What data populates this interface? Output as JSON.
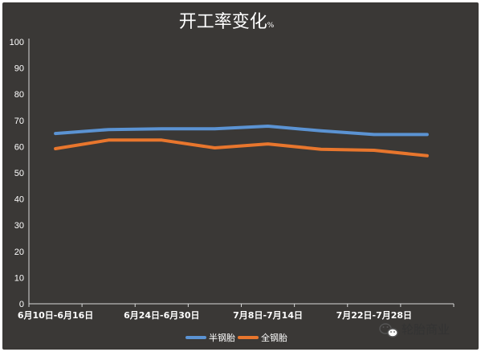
{
  "chart_data": {
    "type": "line",
    "title": "开工率变化",
    "title_unit": "%",
    "categories": [
      "6月10日-6月16日",
      "",
      "6月24日-6月30日",
      "",
      "7月8日-7月14日",
      "",
      "7月22日-7月28日",
      ""
    ],
    "series": [
      {
        "name": "半钢胎",
        "color": "#5b93d3",
        "values": [
          65,
          66.5,
          66.8,
          66.8,
          67.8,
          66,
          64.6,
          64.6
        ]
      },
      {
        "name": "全钢胎",
        "color": "#e8762d",
        "values": [
          59.2,
          62.5,
          62.5,
          59.5,
          61,
          59,
          58.6,
          56.5
        ]
      }
    ],
    "ylim": [
      0,
      100
    ],
    "yticks": [
      0,
      10,
      20,
      30,
      40,
      50,
      60,
      70,
      80,
      90,
      100
    ],
    "legend_position": "bottom",
    "grid": false
  },
  "watermark": {
    "icon": "wechat-icon",
    "text": "轮胎商业"
  }
}
